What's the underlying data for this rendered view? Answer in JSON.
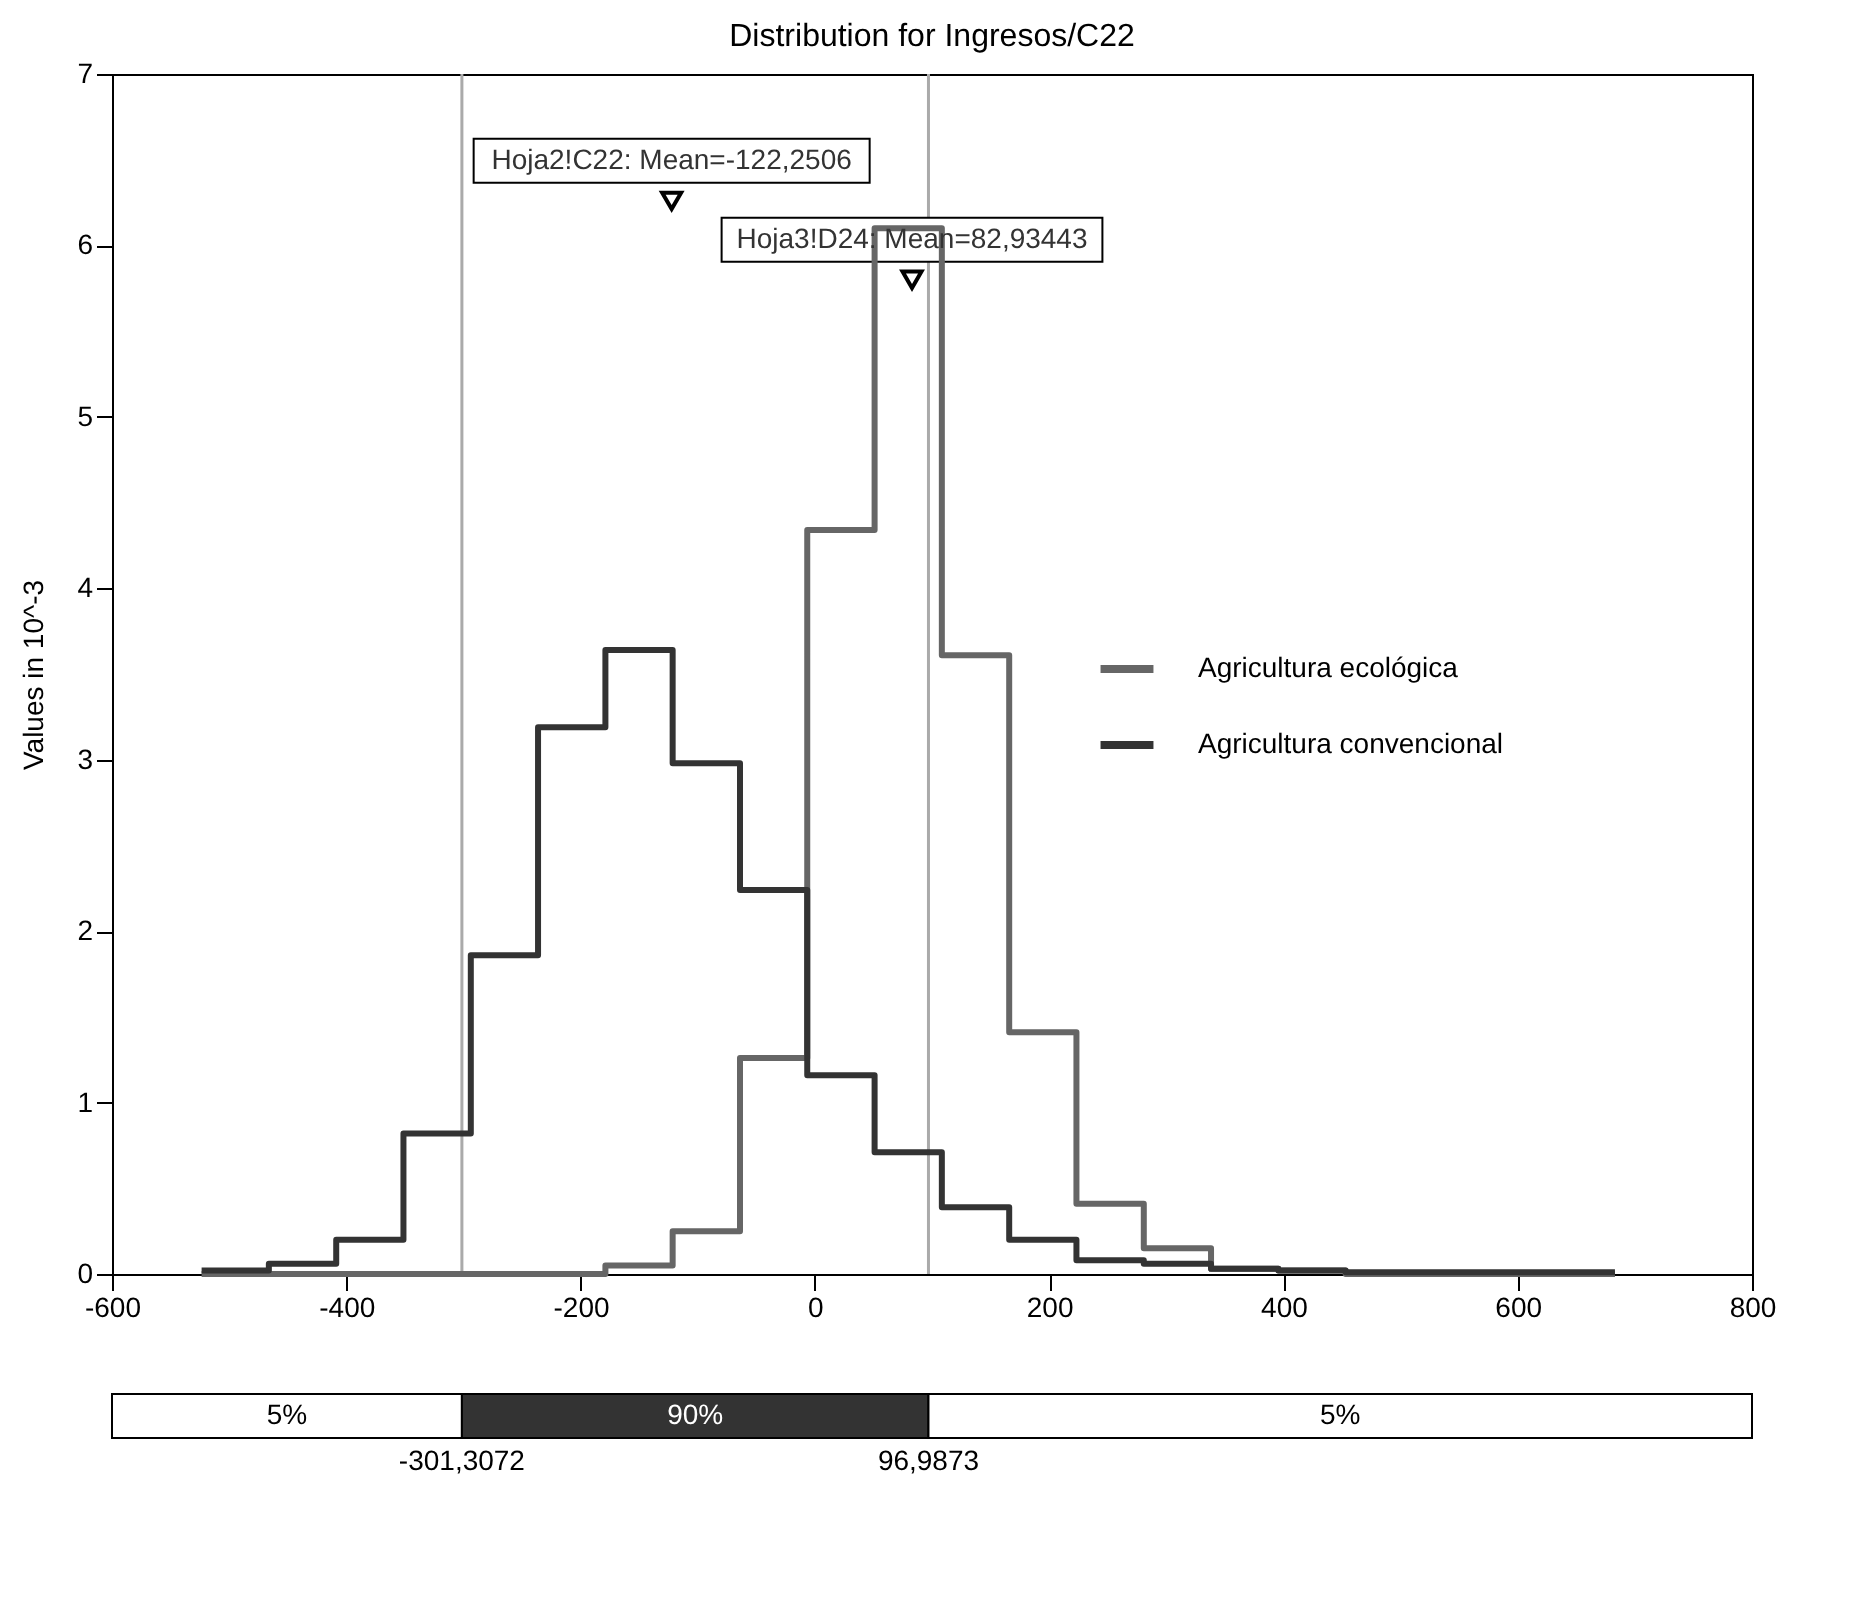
{
  "chart_data": {
    "type": "histogram",
    "title": "Distribution for Ingresos/C22",
    "ylabel": "Values in 10^-3",
    "bins": [
      -523.5,
      -466.1,
      -408.6,
      -351.2,
      -293.7,
      -236.3,
      -178.8,
      -121.4,
      -63.9,
      -6.5,
      51.0,
      108.4,
      165.9,
      223.3,
      280.8,
      338.2,
      395.7,
      453.1,
      510.6,
      568.0,
      625.5,
      683.0
    ],
    "series": [
      {
        "name": "Agricultura ecológica",
        "color": "#666666",
        "values": [
          0,
          0,
          0,
          0,
          0,
          0,
          0.05,
          0.25,
          1.26,
          4.34,
          6.1,
          3.61,
          1.41,
          0.41,
          0.15,
          0.03,
          0.02,
          0,
          0,
          0,
          0
        ]
      },
      {
        "name": "Agricultura convencional",
        "color": "#333333",
        "values": [
          0.02,
          0.06,
          0.2,
          0.82,
          1.86,
          3.19,
          3.64,
          2.98,
          2.24,
          1.16,
          0.71,
          0.39,
          0.2,
          0.08,
          0.06,
          0.03,
          0.02,
          0.01,
          0.01,
          0.01,
          0.01
        ]
      }
    ],
    "xlim": [
      -600,
      800
    ],
    "xticks": [
      -600,
      -400,
      -200,
      0,
      200,
      400,
      600,
      800
    ],
    "ylim": [
      0,
      7
    ],
    "yticks": [
      0,
      1,
      2,
      3,
      4,
      5,
      6,
      7
    ],
    "grid": false,
    "legend": "right",
    "ref_lines": [
      {
        "axis": "x",
        "value": -301.3072,
        "color": "#aaaaaa"
      },
      {
        "axis": "x",
        "value": 96.9873,
        "color": "#aaaaaa"
      }
    ],
    "annotations": [
      {
        "text": "Hoja2!C22: Mean=-122,2506",
        "x": -122.2506,
        "y": 6.26
      },
      {
        "text": "Hoja3!D24: Mean=82,93443",
        "x": 82.93443,
        "y": 5.8
      },
      "5%",
      "90%",
      "5%",
      "-301,3072",
      "96,9873"
    ]
  }
}
